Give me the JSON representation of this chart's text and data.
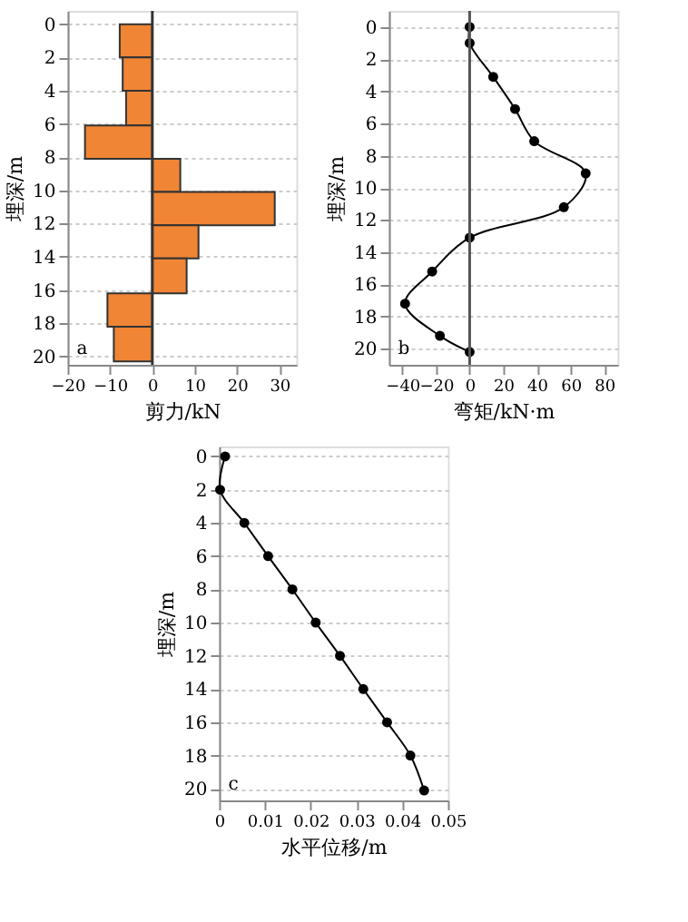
{
  "chart_data": [
    {
      "type": "histogram",
      "orientation": "horizontal",
      "xlabel": "剪力/kN",
      "ylabel": "埋深/m",
      "bins": [
        0,
        2,
        4,
        6.1,
        8.1,
        10.1,
        12.1,
        14.1,
        16.2,
        18.2,
        20.3
      ],
      "values": [
        -7.7,
        -7.0,
        -6.2,
        -15.9,
        6.6,
        28.9,
        10.9,
        8.1,
        -10.6,
        -9.1
      ],
      "color": "#ef8535",
      "xlim": [
        -20,
        34
      ],
      "xticks": [
        -20,
        -10,
        0,
        10,
        20,
        30
      ],
      "ylim": [
        20.5,
        -0.8
      ],
      "yticks": [
        0,
        2,
        4,
        6,
        8,
        10,
        12,
        14,
        16,
        18,
        20
      ],
      "grid": "y",
      "ref_lines": [
        {
          "axis": "x",
          "value": 0,
          "color": "#333333"
        }
      ],
      "annotations": [
        "a"
      ]
    },
    {
      "type": "line",
      "xlabel": "弯矩/kN·m",
      "ylabel": "埋深/m",
      "marker": "circle",
      "series": [
        {
          "color": "#000000",
          "x": [
            0,
            0,
            14,
            27,
            38.4,
            69,
            56,
            0,
            -22.3,
            -38.4,
            -17.7,
            0
          ],
          "values": [
            0,
            1.0,
            3.1,
            5.1,
            7.1,
            9.1,
            11.2,
            13.1,
            15.2,
            17.2,
            19.2,
            20.2
          ]
        }
      ],
      "xlim": [
        -48,
        88
      ],
      "xticks": [
        -40,
        -20,
        0,
        20,
        40,
        60,
        80
      ],
      "ylim": [
        21.0,
        -1.0
      ],
      "yticks": [
        0,
        2,
        4,
        6,
        8,
        10,
        12,
        14,
        16,
        18,
        20
      ],
      "grid": "y",
      "ref_lines": [
        {
          "axis": "x",
          "value": 0,
          "color": "#555555"
        }
      ],
      "annotations": [
        "b"
      ]
    },
    {
      "type": "line",
      "xlabel": "水平位移/m",
      "ylabel": "埋深/m",
      "marker": "circle",
      "series": [
        {
          "color": "#000000",
          "x": [
            0.0013,
            0.0002,
            0.0055,
            0.0107,
            0.016,
            0.0211,
            0.0264,
            0.0315,
            0.0367,
            0.0418,
            0.0448
          ],
          "values": [
            0,
            2,
            4,
            6,
            8,
            10,
            12,
            14,
            16,
            18,
            20.1
          ]
        }
      ],
      "xlim": [
        0,
        0.05
      ],
      "xticks": [
        0,
        0.01,
        0.02,
        0.03,
        0.04,
        0.05
      ],
      "ylim": [
        20.7,
        -0.6
      ],
      "yticks": [
        0,
        2,
        4,
        6,
        8,
        10,
        12,
        14,
        16,
        18,
        20
      ],
      "grid": "y",
      "annotations": [
        "c"
      ]
    }
  ]
}
